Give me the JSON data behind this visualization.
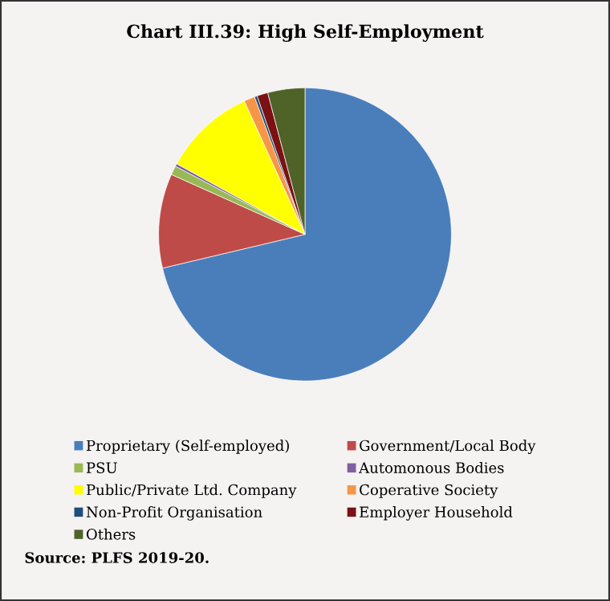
{
  "chart_data": {
    "type": "pie",
    "title": "Chart III.39: High Self-Employment",
    "categories": [
      "Proprietary (Self-employed)",
      "Government/Local Body",
      "PSU",
      "Automonous Bodies",
      "Public/Private Ltd. Company",
      "Coperative Society",
      "Non-Profit Organisation",
      "Employer Household",
      "Others"
    ],
    "values": [
      71.3,
      10.4,
      1.0,
      0.3,
      10.2,
      1.2,
      0.3,
      1.2,
      4.1
    ],
    "colors": [
      "#4a7ebb",
      "#be4b48",
      "#98b954",
      "#7d60a0",
      "#ffff00",
      "#f79646",
      "#1f4e79",
      "#7b1113",
      "#4f6228"
    ],
    "legend": "bottom",
    "annotations": [
      "Source: PLFS 2019-20."
    ]
  }
}
